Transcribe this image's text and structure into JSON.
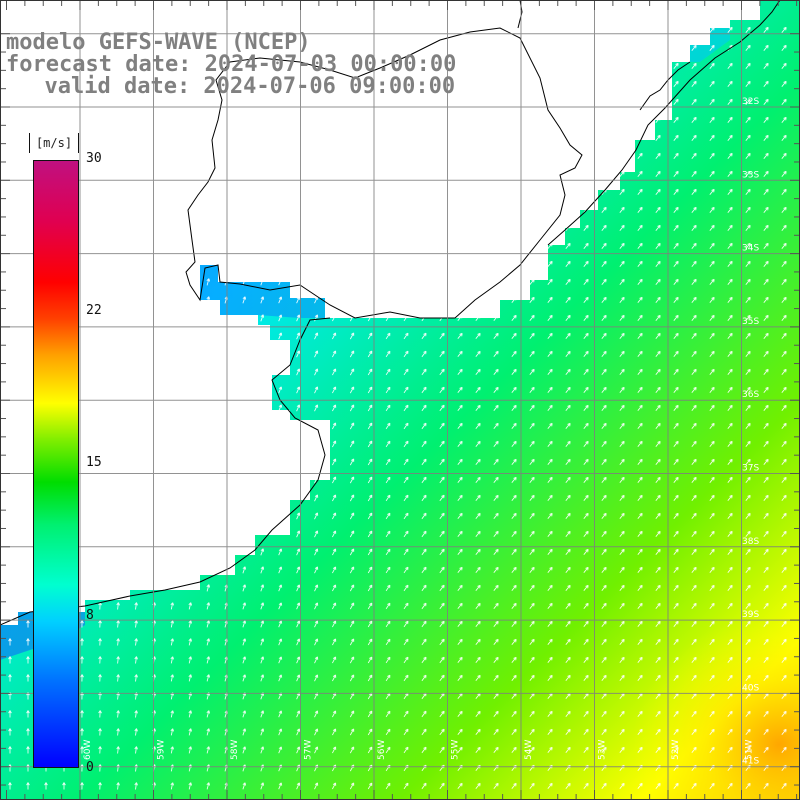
{
  "title": {
    "line1": "modelo GEFS-WAVE (NCEP)",
    "line2": "forecast date: 2024-07-03 00:00:00",
    "line3": "  valid date: 2024-07-06 09:00:00"
  },
  "colorbar": {
    "unit": "[m/s]",
    "ticks": [
      "30",
      "22",
      "15",
      "8",
      "0"
    ],
    "range": [
      0,
      30
    ],
    "colors": [
      "#0000ff",
      "#00d0ff",
      "#00dd00",
      "#ffff00",
      "#ff0000",
      "#c01080"
    ]
  },
  "map": {
    "lat_labels": [
      "32S",
      "33S",
      "34S",
      "35S",
      "36S",
      "37S",
      "38S",
      "39S",
      "40S",
      "41S"
    ],
    "lon_labels": [
      "60W",
      "59W",
      "58W",
      "57W",
      "56W",
      "55W",
      "54W",
      "53W",
      "52W",
      "51W"
    ],
    "land_color": "#ffffff",
    "grid_color": "#7f7f7f"
  }
}
